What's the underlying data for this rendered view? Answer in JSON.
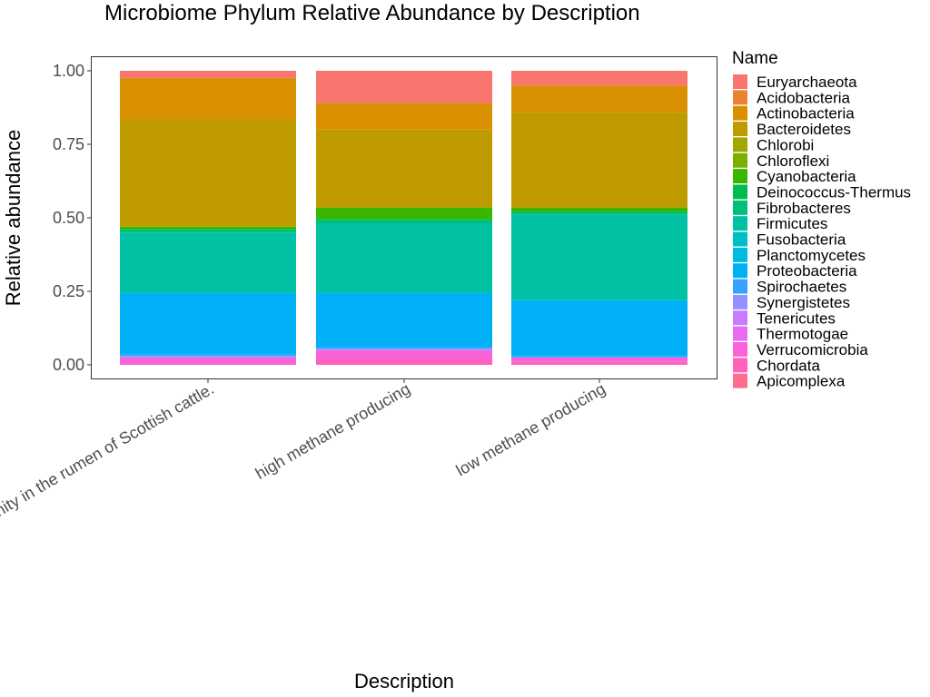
{
  "chart_data": {
    "type": "bar",
    "stacked": true,
    "title": "Microbiome Phylum Relative Abundance by Description",
    "xlabel": "Description",
    "ylabel": "Relative abundance",
    "ylim": [
      0,
      1
    ],
    "yticks": [
      "0.00",
      "0.25",
      "0.50",
      "0.75",
      "1.00"
    ],
    "grid": false,
    "legend": {
      "title": "Name",
      "position": "right"
    },
    "categories": [
      "Rumen microbial community in the rumen of Scottish cattle.",
      "high methane producing",
      "low methane producing"
    ],
    "series": [
      {
        "name": "Euryarchaeota",
        "color": "#F8766D",
        "values": [
          0.025,
          0.11,
          0.05
        ]
      },
      {
        "name": "Acidobacteria",
        "color": "#EA8331",
        "values": [
          0.0,
          0.0,
          0.0
        ]
      },
      {
        "name": "Actinobacteria",
        "color": "#D89000",
        "values": [
          0.14,
          0.09,
          0.09
        ]
      },
      {
        "name": "Bacteroidetes",
        "color": "#C09B00",
        "values": [
          0.365,
          0.265,
          0.325
        ]
      },
      {
        "name": "Chlorobi",
        "color": "#A3A500",
        "values": [
          0.0,
          0.0,
          0.0
        ]
      },
      {
        "name": "Chloroflexi",
        "color": "#7CAE00",
        "values": [
          0.0,
          0.0,
          0.0
        ]
      },
      {
        "name": "Cyanobacteria",
        "color": "#39B600",
        "values": [
          0.01,
          0.04,
          0.015
        ]
      },
      {
        "name": "Deinococcus-Thermus",
        "color": "#00BB4E",
        "values": [
          0.0,
          0.0,
          0.0
        ]
      },
      {
        "name": "Fibrobacteres",
        "color": "#00BF7D",
        "values": [
          0.01,
          0.015,
          0.01
        ]
      },
      {
        "name": "Firmicutes",
        "color": "#00C1A3",
        "values": [
          0.205,
          0.235,
          0.29
        ]
      },
      {
        "name": "Fusobacteria",
        "color": "#00BFC4",
        "values": [
          0.0,
          0.0,
          0.0
        ]
      },
      {
        "name": "Planctomycetes",
        "color": "#00BAE0",
        "values": [
          0.0,
          0.0,
          0.0
        ]
      },
      {
        "name": "Proteobacteria",
        "color": "#00B0F6",
        "values": [
          0.21,
          0.185,
          0.19
        ]
      },
      {
        "name": "Spirochaetes",
        "color": "#35A2FF",
        "values": [
          0.005,
          0.005,
          0.005
        ]
      },
      {
        "name": "Synergistetes",
        "color": "#9590FF",
        "values": [
          0.005,
          0.005,
          0.0
        ]
      },
      {
        "name": "Tenericutes",
        "color": "#C77CFF",
        "values": [
          0.0,
          0.0,
          0.0
        ]
      },
      {
        "name": "Thermotogae",
        "color": "#E76BF3",
        "values": [
          0.0,
          0.0,
          0.0
        ]
      },
      {
        "name": "Verrucomicrobia",
        "color": "#FA62DB",
        "values": [
          0.025,
          0.03,
          0.015
        ]
      },
      {
        "name": "Chordata",
        "color": "#FF62BC",
        "values": [
          0.0,
          0.02,
          0.01
        ]
      },
      {
        "name": "Apicomplexa",
        "color": "#FF6C91",
        "values": [
          0.0,
          0.0,
          0.0
        ]
      }
    ]
  }
}
